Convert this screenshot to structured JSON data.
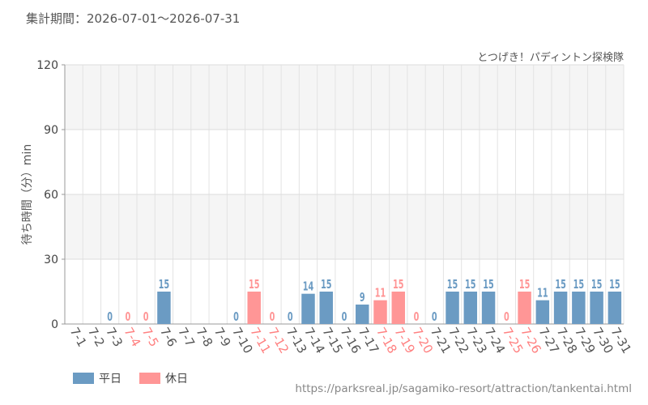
{
  "header": {
    "period_label": "集計期間：2026-07-01～2026-07-31",
    "attraction": "とつげき！パディントン探検隊",
    "source_url": "https://parksreal.jp/sagamiko-resort/attraction/tankentai.html"
  },
  "legend": {
    "weekday_label": "平日",
    "holiday_label": "休日"
  },
  "colors": {
    "weekday": "#6b9bc3",
    "holiday": "#ff9696",
    "holiday_text": "#ff8080",
    "weekday_text": "#555555"
  },
  "chart_data": {
    "type": "bar",
    "ylabel": "待ち時間（分）min",
    "ylim": [
      0,
      120
    ],
    "yticks": [
      0,
      30,
      60,
      90,
      120
    ],
    "grid": true,
    "categories": [
      "7-1",
      "7-2",
      "7-3",
      "7-4",
      "7-5",
      "7-6",
      "7-7",
      "7-8",
      "7-9",
      "7-10",
      "7-11",
      "7-12",
      "7-13",
      "7-14",
      "7-15",
      "7-16",
      "7-17",
      "7-18",
      "7-19",
      "7-20",
      "7-21",
      "7-22",
      "7-23",
      "7-24",
      "7-25",
      "7-26",
      "7-27",
      "7-28",
      "7-29",
      "7-30",
      "7-31"
    ],
    "values": [
      null,
      null,
      0,
      0,
      0,
      15,
      null,
      null,
      null,
      0,
      15,
      0,
      0,
      14,
      15,
      0,
      9,
      11,
      15,
      0,
      0,
      15,
      15,
      15,
      0,
      15,
      11,
      15,
      15,
      15,
      15
    ],
    "day_type": [
      "weekday",
      "weekday",
      "weekday",
      "holiday",
      "holiday",
      "weekday",
      "weekday",
      "weekday",
      "weekday",
      "weekday",
      "holiday",
      "holiday",
      "weekday",
      "weekday",
      "weekday",
      "weekday",
      "weekday",
      "holiday",
      "holiday",
      "holiday",
      "weekday",
      "weekday",
      "weekday",
      "weekday",
      "holiday",
      "holiday",
      "weekday",
      "weekday",
      "weekday",
      "weekday",
      "weekday"
    ],
    "series": [
      {
        "name": "平日",
        "color": "#6b9bc3"
      },
      {
        "name": "休日",
        "color": "#ff9696"
      }
    ]
  }
}
